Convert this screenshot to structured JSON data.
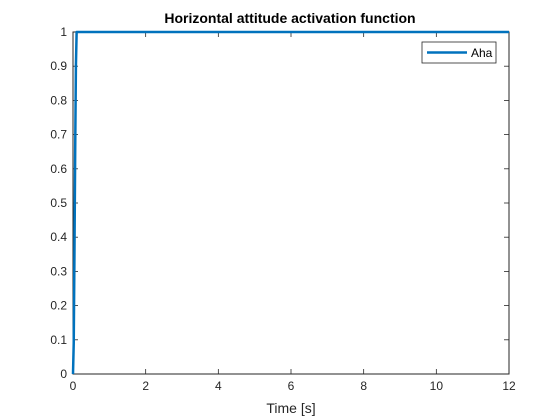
{
  "chart_data": {
    "type": "line",
    "title": "Horizontal attitude activation function",
    "xlabel": "Time [s]",
    "ylabel": "",
    "xlim": [
      0,
      12
    ],
    "ylim": [
      0,
      1
    ],
    "xticks": [
      0,
      2,
      4,
      6,
      8,
      10,
      12
    ],
    "yticks": [
      0,
      0.1,
      0.2,
      0.3,
      0.4,
      0.5,
      0.6,
      0.7,
      0.8,
      0.9,
      1
    ],
    "xtick_labels": [
      "0",
      "2",
      "4",
      "6",
      "8",
      "10",
      "12"
    ],
    "ytick_labels": [
      "0",
      "0.1",
      "0.2",
      "0.3",
      "0.4",
      "0.5",
      "0.6",
      "0.7",
      "0.8",
      "0.9",
      "1"
    ],
    "grid": false,
    "legend_position": "top-right",
    "series": [
      {
        "name": "Aha",
        "color": "#0072BD",
        "x": [
          0,
          0.02,
          0.04,
          0.06,
          0.08,
          0.1,
          0.12,
          0.14,
          0.16,
          0.18,
          0.2,
          12
        ],
        "y": [
          0,
          0.09,
          0.35,
          0.65,
          0.9,
          1,
          1,
          1,
          1,
          1,
          1,
          1
        ]
      }
    ]
  }
}
